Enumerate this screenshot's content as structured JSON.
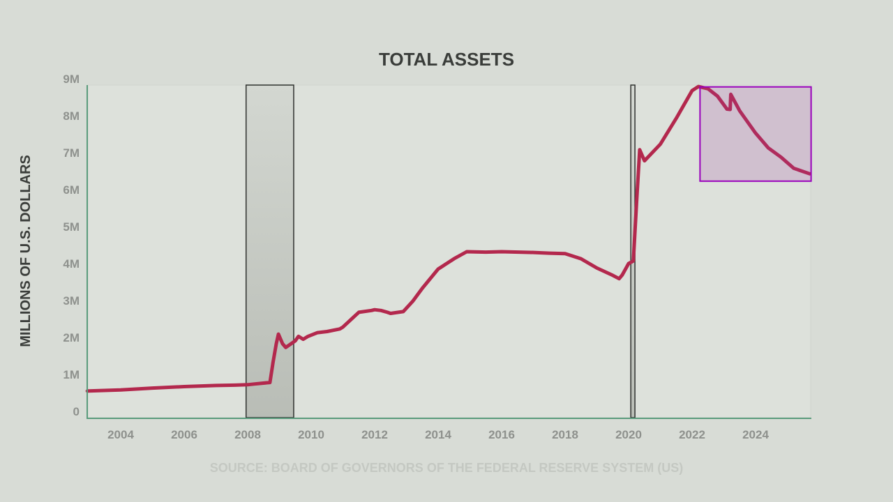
{
  "chart_data": {
    "type": "line",
    "title": "TOTAL ASSETS",
    "xlabel": "",
    "ylabel": "MILLIONS OF U.S. DOLLARS",
    "source": "SOURCE: BOARD OF GOVERNORS OF THE FEDERAL RESERVE SYSTEM (US)",
    "xlim": [
      2002.9,
      2025.7
    ],
    "ylim": [
      0,
      9
    ],
    "x_ticks": [
      2004,
      2006,
      2008,
      2010,
      2012,
      2014,
      2016,
      2018,
      2020,
      2022,
      2024
    ],
    "x_tick_labels": [
      "2004",
      "2006",
      "2008",
      "2010",
      "2012",
      "2014",
      "2016",
      "2018",
      "2020",
      "2022",
      "2024"
    ],
    "y_ticks": [
      0,
      1,
      2,
      3,
      4,
      5,
      6,
      7,
      8,
      9
    ],
    "y_tick_labels": [
      "0",
      "1M",
      "2M",
      "3M",
      "4M",
      "5M",
      "6M",
      "7M",
      "8M",
      "9M"
    ],
    "grid": false,
    "line_color": "#b3284d",
    "series": [
      {
        "x": [
          2002.95,
          2004.0,
          2005.0,
          2006.0,
          2007.0,
          2007.6,
          2008.0,
          2008.2,
          2008.7,
          2008.8,
          2008.9,
          2008.97,
          2009.1,
          2009.2,
          2009.5,
          2009.6,
          2009.75,
          2009.9,
          2010.2,
          2010.5,
          2010.9,
          2011.0,
          2011.5,
          2011.9,
          2012.0,
          2012.2,
          2012.4,
          2012.5,
          2012.9,
          2013.2,
          2013.5,
          2014.0,
          2014.5,
          2014.9,
          2015.5,
          2016.0,
          2017.0,
          2017.5,
          2018.0,
          2018.5,
          2019.0,
          2019.5,
          2019.7,
          2019.8,
          2020.0,
          2020.15,
          2020.25,
          2020.35,
          2020.5,
          2021.0,
          2021.5,
          2022.0,
          2022.2,
          2022.5,
          2022.8,
          2023.1,
          2023.2,
          2023.22,
          2023.5,
          2024.0,
          2024.4,
          2024.8,
          2025.2,
          2025.7
        ],
        "y": [
          0.72,
          0.75,
          0.8,
          0.84,
          0.87,
          0.88,
          0.89,
          0.91,
          0.95,
          1.5,
          2.0,
          2.26,
          2.0,
          1.9,
          2.08,
          2.2,
          2.12,
          2.2,
          2.3,
          2.33,
          2.4,
          2.45,
          2.85,
          2.9,
          2.92,
          2.9,
          2.85,
          2.82,
          2.87,
          3.15,
          3.5,
          4.02,
          4.3,
          4.49,
          4.48,
          4.49,
          4.47,
          4.45,
          4.44,
          4.3,
          4.05,
          3.85,
          3.76,
          3.86,
          4.17,
          4.24,
          5.8,
          7.25,
          6.95,
          7.4,
          8.1,
          8.85,
          8.96,
          8.9,
          8.7,
          8.35,
          8.34,
          8.75,
          8.3,
          7.7,
          7.3,
          7.05,
          6.75,
          6.6
        ]
      }
    ],
    "recessions": [
      [
        2007.95,
        2009.45
      ],
      [
        2020.07,
        2020.2
      ]
    ],
    "highlight": {
      "x": [
        2022.25,
        2025.75
      ],
      "y": [
        6.4,
        8.95
      ],
      "color": "#9900bb"
    }
  }
}
